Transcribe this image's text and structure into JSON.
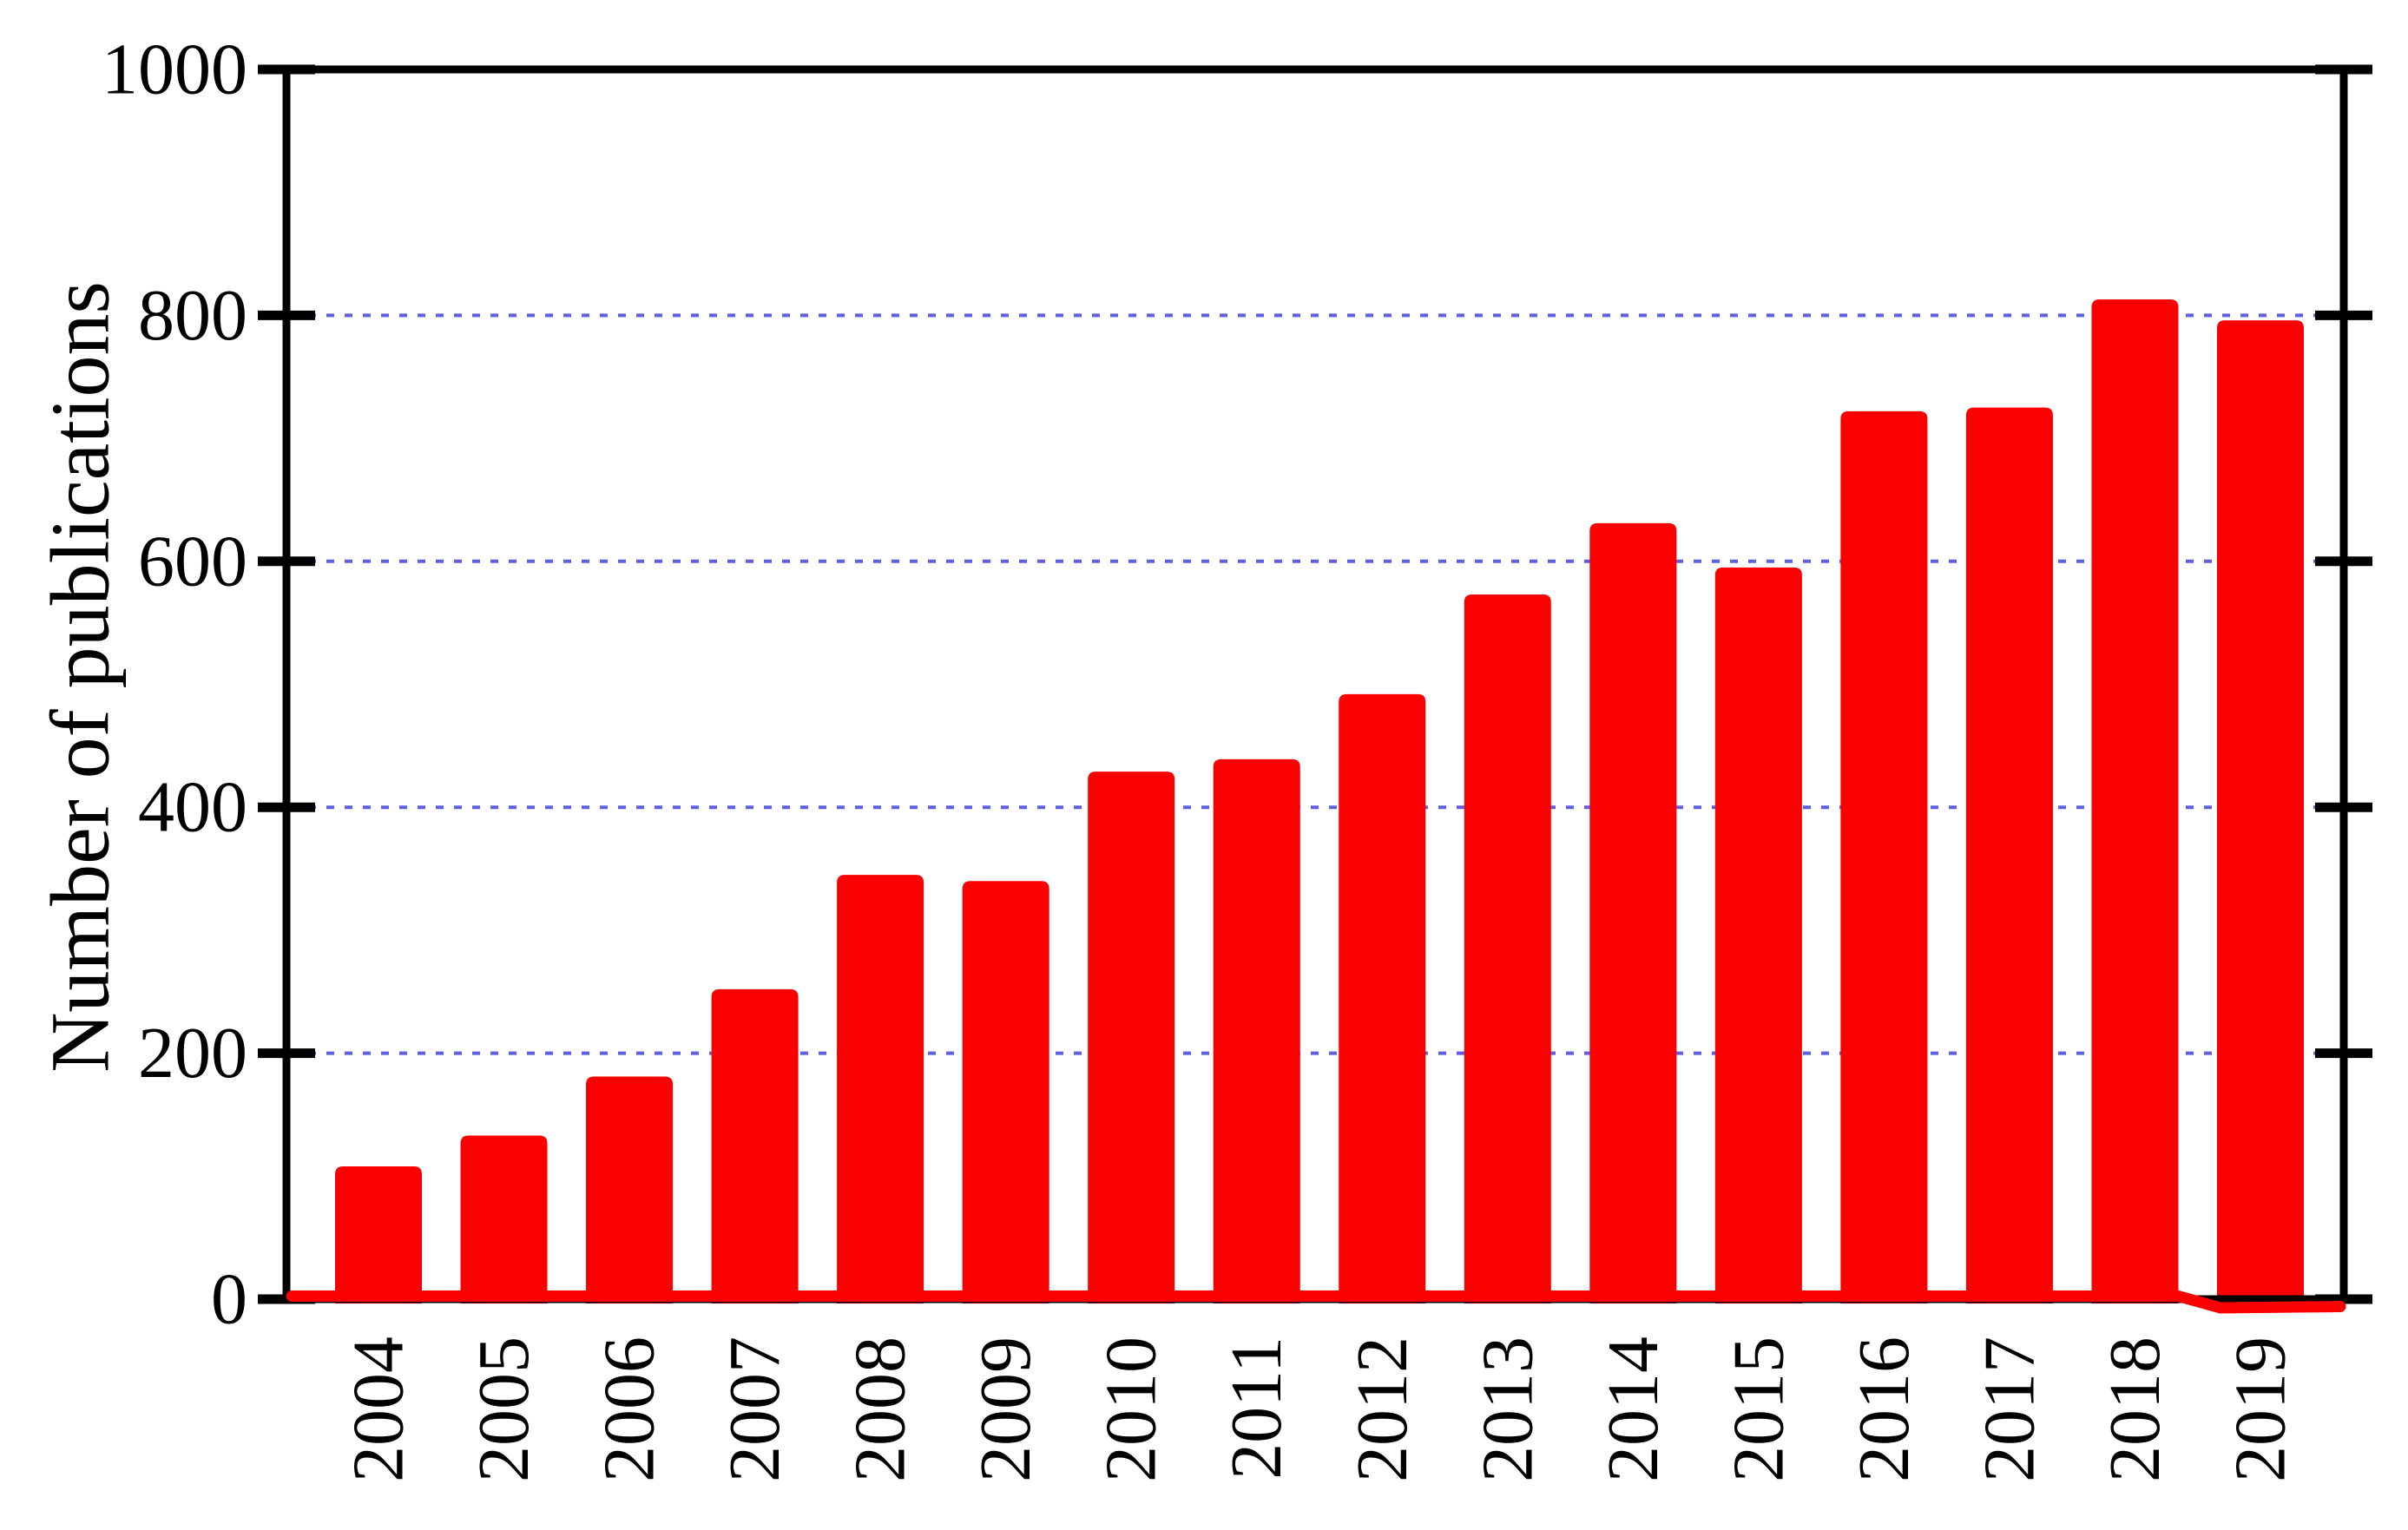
{
  "chart_data": {
    "type": "bar",
    "title": "",
    "xlabel": "",
    "ylabel": "Number of publications",
    "categories": [
      "2004",
      "2005",
      "2006",
      "2007",
      "2008",
      "2009",
      "2010",
      "2011",
      "2012",
      "2013",
      "2014",
      "2015",
      "2016",
      "2017",
      "2018",
      "2019"
    ],
    "values": [
      108,
      133,
      181,
      252,
      345,
      340,
      429,
      439,
      492,
      573,
      631,
      595,
      722,
      725,
      813,
      796
    ],
    "ylim": [
      0,
      1000
    ],
    "yticks": [
      0,
      200,
      400,
      600,
      800,
      1000
    ],
    "ytick_labels": [
      "0",
      "200",
      "400",
      "600",
      "800",
      "1000"
    ],
    "grid": {
      "axis": "y",
      "style": "dashed",
      "levels": [
        200,
        400,
        600,
        800
      ],
      "color": "#5E5EDF"
    },
    "legend": "none",
    "frame": "full-box with crossing tick marks on left and right axes",
    "colors": {
      "bar": "#FA0000",
      "baseline": "#FA0000",
      "axis": "#000000",
      "grid": "#5E5EDF",
      "background": "#FFFFFF",
      "text": "#000000"
    }
  }
}
